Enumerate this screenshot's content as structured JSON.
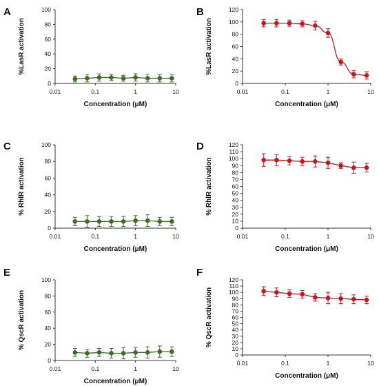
{
  "chart_data": [
    {
      "panel": "A",
      "type": "line",
      "xscale": "log",
      "x": [
        0.03125,
        0.0625,
        0.125,
        0.25,
        0.5,
        1,
        2,
        4,
        8
      ],
      "series": [
        {
          "values": [
            6,
            7,
            8,
            8,
            7,
            8,
            7,
            7,
            7
          ],
          "errors": [
            4,
            5,
            5,
            4,
            4,
            5,
            5,
            5,
            5
          ],
          "color": "#3e6b2a"
        }
      ],
      "xlabel": "Concentration (μM)",
      "ylabel": "%LasR activation",
      "xticks": [
        "0.01",
        "0.1",
        "1",
        "10"
      ],
      "yticks": [
        "0",
        "20",
        "40",
        "60",
        "80",
        "100"
      ],
      "ylim": [
        0,
        100
      ],
      "grid": false
    },
    {
      "panel": "B",
      "type": "line",
      "xscale": "log",
      "x": [
        0.03125,
        0.0625,
        0.125,
        0.25,
        0.5,
        1,
        2,
        4,
        8
      ],
      "series": [
        {
          "values": [
            98,
            98,
            98,
            97,
            94,
            82,
            35,
            15,
            13
          ],
          "errors": [
            6,
            6,
            5,
            5,
            7,
            7,
            5,
            6,
            6
          ],
          "color": "#c0181e"
        }
      ],
      "xlabel": "Concentration (μM)",
      "ylabel": "%LasR activation",
      "xticks": [
        "0.01",
        "0.1",
        "1",
        "10"
      ],
      "yticks": [
        "0",
        "20",
        "40",
        "60",
        "80",
        "100",
        "120"
      ],
      "ylim": [
        0,
        120
      ],
      "grid": false
    },
    {
      "panel": "C",
      "type": "line",
      "xscale": "log",
      "x": [
        0.03125,
        0.0625,
        0.125,
        0.25,
        0.5,
        1,
        2,
        4,
        8
      ],
      "series": [
        {
          "values": [
            8,
            8,
            8,
            8,
            8,
            9,
            9,
            8,
            8
          ],
          "errors": [
            5,
            7,
            6,
            6,
            6,
            6,
            7,
            5,
            5
          ],
          "color": "#3e6b2a"
        }
      ],
      "xlabel": "Concentration (μM)",
      "ylabel": "% RhlR activation",
      "xticks": [
        "0.01",
        "0.1",
        "1",
        "10"
      ],
      "yticks": [
        "0",
        "20",
        "40",
        "60",
        "80",
        "100"
      ],
      "ylim": [
        0,
        100
      ],
      "grid": false
    },
    {
      "panel": "D",
      "type": "line",
      "xscale": "log",
      "x": [
        0.03125,
        0.0625,
        0.125,
        0.25,
        0.5,
        1,
        2,
        4,
        8
      ],
      "series": [
        {
          "values": [
            98,
            98,
            97,
            96,
            96,
            94,
            90,
            87,
            87
          ],
          "errors": [
            9,
            8,
            6,
            6,
            8,
            8,
            4,
            8,
            6
          ],
          "color": "#c0181e"
        }
      ],
      "xlabel": "Concentration (μM)",
      "ylabel": "% RhlR activation",
      "xticks": [
        "0.01",
        "0.1",
        "1",
        "10"
      ],
      "yticks": [
        "0",
        "10",
        "20",
        "30",
        "40",
        "50",
        "60",
        "70",
        "80",
        "90",
        "100",
        "110",
        "120"
      ],
      "ylim": [
        0,
        120
      ],
      "grid": false
    },
    {
      "panel": "E",
      "type": "line",
      "xscale": "log",
      "x": [
        0.03125,
        0.0625,
        0.125,
        0.25,
        0.5,
        1,
        2,
        4,
        8
      ],
      "series": [
        {
          "values": [
            10,
            9,
            10,
            9,
            9,
            10,
            10,
            11,
            11
          ],
          "errors": [
            5,
            5,
            5,
            6,
            7,
            6,
            7,
            7,
            6
          ],
          "color": "#3e6b2a"
        }
      ],
      "xlabel": "Concentration (μM)",
      "ylabel": "% QscR activation",
      "xticks": [
        "0.01",
        "0.1",
        "1",
        "10"
      ],
      "yticks": [
        "0",
        "20",
        "40",
        "60",
        "80",
        "100"
      ],
      "ylim": [
        0,
        100
      ],
      "grid": false
    },
    {
      "panel": "F",
      "type": "line",
      "xscale": "log",
      "x": [
        0.03125,
        0.0625,
        0.125,
        0.25,
        0.5,
        1,
        2,
        4,
        8
      ],
      "series": [
        {
          "values": [
            102,
            100,
            98,
            97,
            92,
            91,
            90,
            89,
            88
          ],
          "errors": [
            7,
            7,
            6,
            6,
            6,
            9,
            8,
            7,
            6
          ],
          "color": "#c0181e"
        }
      ],
      "xlabel": "Concentration (μM)",
      "ylabel": "% QscR activation",
      "xticks": [
        "0.01",
        "0.1",
        "1",
        "10"
      ],
      "yticks": [
        "0",
        "10",
        "20",
        "30",
        "40",
        "50",
        "60",
        "70",
        "80",
        "90",
        "100",
        "110",
        "120"
      ],
      "ylim": [
        0,
        120
      ],
      "grid": false
    }
  ]
}
